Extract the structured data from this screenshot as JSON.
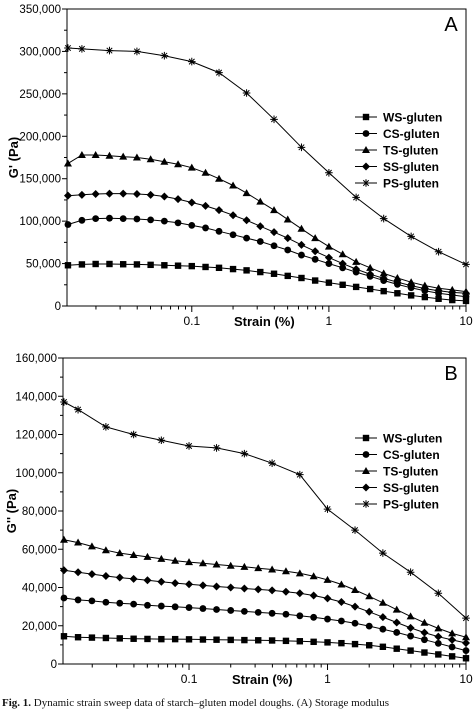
{
  "caption": {
    "prefix": "Fig. 1.",
    "text": "Dynamic strain sweep data of starch–gluten model doughs. (A) Storage modulus"
  },
  "chart_data": [
    {
      "type": "line",
      "panel_label": "A",
      "title": "",
      "xlabel": "Strain (%)",
      "ylabel": "G' (Pa)",
      "xscale": "log",
      "xlim": [
        0.0123,
        10
      ],
      "ylim": [
        0,
        350000
      ],
      "x_ticks": [
        0.1,
        1,
        10
      ],
      "x_tick_labels": [
        "0.1",
        "1",
        "10"
      ],
      "y_ticks": [
        0,
        50000,
        100000,
        150000,
        200000,
        250000,
        300000,
        350000
      ],
      "y_tick_labels": [
        "0",
        "50,000",
        "100,000",
        "150,000",
        "200,000",
        "250,000",
        "300,000",
        "350,000"
      ],
      "grid": false,
      "legend_position": "right",
      "series": [
        {
          "name": "WS-gluten",
          "marker": "square",
          "x": [
            0.0125,
            0.0158,
            0.0199,
            0.0251,
            0.0316,
            0.0398,
            0.0501,
            0.0631,
            0.0794,
            0.1,
            0.126,
            0.158,
            0.2,
            0.251,
            0.316,
            0.398,
            0.501,
            0.631,
            0.794,
            1,
            1.26,
            1.58,
            2,
            2.51,
            3.16,
            3.98,
            5.01,
            6.31,
            7.94,
            10
          ],
          "y": [
            48000,
            49000,
            49500,
            49500,
            49200,
            49000,
            48500,
            48000,
            47500,
            47000,
            46000,
            45000,
            43500,
            42000,
            40000,
            38000,
            35500,
            33000,
            30000,
            27500,
            25000,
            22500,
            20000,
            17500,
            15000,
            12500,
            10500,
            8500,
            7000,
            6000
          ]
        },
        {
          "name": "CS-gluten",
          "marker": "circle",
          "x": [
            0.0125,
            0.0158,
            0.0199,
            0.0251,
            0.0316,
            0.0398,
            0.0501,
            0.0631,
            0.0794,
            0.1,
            0.126,
            0.158,
            0.2,
            0.251,
            0.316,
            0.398,
            0.501,
            0.631,
            0.794,
            1,
            1.26,
            1.58,
            2,
            2.51,
            3.16,
            3.98,
            5.01,
            6.31,
            7.94,
            10
          ],
          "y": [
            96000,
            101000,
            103000,
            103500,
            103000,
            102500,
            101500,
            100000,
            98000,
            95000,
            92000,
            88000,
            84000,
            80000,
            76000,
            71000,
            66000,
            60000,
            55000,
            50000,
            45000,
            40000,
            35000,
            30000,
            25500,
            21500,
            18000,
            15000,
            13000,
            11000
          ]
        },
        {
          "name": "TS-gluten",
          "marker": "triangle",
          "x": [
            0.0125,
            0.0158,
            0.0199,
            0.0251,
            0.0316,
            0.0398,
            0.0501,
            0.0631,
            0.0794,
            0.1,
            0.126,
            0.158,
            0.2,
            0.251,
            0.316,
            0.398,
            0.501,
            0.631,
            0.794,
            1,
            1.26,
            1.58,
            2,
            2.51,
            3.16,
            3.98,
            5.01,
            6.31,
            7.94,
            10
          ],
          "y": [
            168000,
            178000,
            178000,
            177000,
            176000,
            175000,
            173000,
            170000,
            167000,
            163000,
            157000,
            150000,
            142000,
            133000,
            123000,
            113000,
            102000,
            91000,
            80000,
            70000,
            61000,
            52000,
            45000,
            38500,
            33000,
            28000,
            24000,
            21000,
            19000,
            17000
          ]
        },
        {
          "name": "SS-gluten",
          "marker": "diamond",
          "x": [
            0.0125,
            0.0158,
            0.0199,
            0.0251,
            0.0316,
            0.0398,
            0.0501,
            0.0631,
            0.0794,
            0.1,
            0.126,
            0.158,
            0.2,
            0.251,
            0.316,
            0.398,
            0.501,
            0.631,
            0.794,
            1,
            1.26,
            1.58,
            2,
            2.51,
            3.16,
            3.98,
            5.01,
            6.31,
            7.94,
            10
          ],
          "y": [
            130000,
            131000,
            132000,
            132500,
            132500,
            132000,
            131000,
            129000,
            126000,
            122000,
            118000,
            113000,
            107000,
            101000,
            94000,
            87000,
            80000,
            72000,
            64500,
            57000,
            50000,
            43500,
            37500,
            32500,
            28000,
            24000,
            20500,
            18000,
            16000,
            15000
          ]
        },
        {
          "name": "PS-gluten",
          "marker": "star",
          "x": [
            0.0125,
            0.0158,
            0.0251,
            0.0398,
            0.0631,
            0.1,
            0.158,
            0.251,
            0.398,
            0.631,
            1,
            1.58,
            2.51,
            3.98,
            6.31,
            10
          ],
          "y": [
            304000,
            303000,
            301000,
            300000,
            295000,
            288000,
            275000,
            251000,
            220000,
            187000,
            157000,
            128000,
            103000,
            82000,
            64000,
            49000
          ]
        }
      ]
    },
    {
      "type": "line",
      "panel_label": "B",
      "title": "",
      "xlabel": "Strain (%)",
      "ylabel": "G'' (Pa)",
      "xscale": "log",
      "xlim": [
        0.0123,
        10
      ],
      "ylim": [
        0,
        160000
      ],
      "x_ticks": [
        0.1,
        1,
        10
      ],
      "x_tick_labels": [
        "0.1",
        "1",
        "10"
      ],
      "y_ticks": [
        0,
        20000,
        40000,
        60000,
        80000,
        100000,
        120000,
        140000,
        160000
      ],
      "y_tick_labels": [
        "0",
        "20,000",
        "40,000",
        "60,000",
        "80,000",
        "100,000",
        "120,000",
        "140,000",
        "160,000"
      ],
      "grid": false,
      "legend_position": "right",
      "series": [
        {
          "name": "WS-gluten",
          "marker": "square",
          "x": [
            0.0125,
            0.0158,
            0.0199,
            0.0251,
            0.0316,
            0.0398,
            0.0501,
            0.0631,
            0.0794,
            0.1,
            0.126,
            0.158,
            0.2,
            0.251,
            0.316,
            0.398,
            0.501,
            0.631,
            0.794,
            1,
            1.26,
            1.58,
            2,
            2.51,
            3.16,
            3.98,
            5.01,
            6.31,
            7.94,
            10
          ],
          "y": [
            14500,
            14000,
            13800,
            13600,
            13400,
            13200,
            13100,
            13000,
            13000,
            12900,
            12800,
            12700,
            12600,
            12500,
            12400,
            12300,
            12100,
            11900,
            11600,
            11300,
            10900,
            10400,
            9800,
            9000,
            8000,
            7000,
            6000,
            5000,
            4000,
            3000
          ]
        },
        {
          "name": "CS-gluten",
          "marker": "circle",
          "x": [
            0.0125,
            0.0158,
            0.0199,
            0.0251,
            0.0316,
            0.0398,
            0.0501,
            0.0631,
            0.0794,
            0.1,
            0.126,
            0.158,
            0.2,
            0.251,
            0.316,
            0.398,
            0.501,
            0.631,
            0.794,
            1,
            1.26,
            1.58,
            2,
            2.51,
            3.16,
            3.98,
            5.01,
            6.31,
            7.94,
            10
          ],
          "y": [
            34500,
            33500,
            33000,
            32300,
            31800,
            31300,
            30700,
            30300,
            29900,
            29500,
            29000,
            28500,
            28000,
            27500,
            27000,
            26500,
            26000,
            25200,
            24400,
            23500,
            22500,
            21300,
            19800,
            18200,
            16500,
            14600,
            12700,
            10800,
            8900,
            7000
          ]
        },
        {
          "name": "TS-gluten",
          "marker": "triangle",
          "x": [
            0.0125,
            0.0158,
            0.0199,
            0.0251,
            0.0316,
            0.0398,
            0.0501,
            0.0631,
            0.0794,
            0.1,
            0.126,
            0.158,
            0.2,
            0.251,
            0.316,
            0.398,
            0.501,
            0.631,
            0.794,
            1,
            1.26,
            1.58,
            2,
            2.51,
            3.16,
            3.98,
            5.01,
            6.31,
            7.94,
            10
          ],
          "y": [
            65000,
            63500,
            61500,
            59500,
            58000,
            57000,
            56000,
            55000,
            54000,
            53300,
            52700,
            52000,
            51400,
            50800,
            50100,
            49400,
            48500,
            47400,
            45900,
            44000,
            41600,
            38700,
            35400,
            32000,
            28400,
            24900,
            21600,
            18600,
            16000,
            14000
          ]
        },
        {
          "name": "SS-gluten",
          "marker": "diamond",
          "x": [
            0.0125,
            0.0158,
            0.0199,
            0.0251,
            0.0316,
            0.0398,
            0.0501,
            0.0631,
            0.0794,
            0.1,
            0.126,
            0.158,
            0.2,
            0.251,
            0.316,
            0.398,
            0.501,
            0.631,
            0.794,
            1,
            1.26,
            1.58,
            2,
            2.51,
            3.16,
            3.98,
            5.01,
            6.31,
            7.94,
            10
          ],
          "y": [
            49000,
            48000,
            47000,
            46000,
            45200,
            44500,
            43800,
            43000,
            42300,
            41700,
            41100,
            40500,
            40000,
            39500,
            39000,
            38500,
            37800,
            37000,
            35800,
            34300,
            32400,
            30000,
            27300,
            24500,
            21700,
            18900,
            16400,
            14300,
            12600,
            11000
          ]
        },
        {
          "name": "PS-gluten",
          "marker": "star",
          "x": [
            0.0125,
            0.0158,
            0.0251,
            0.0398,
            0.0631,
            0.1,
            0.158,
            0.251,
            0.398,
            0.631,
            1,
            1.58,
            2.51,
            3.98,
            6.31,
            10
          ],
          "y": [
            137000,
            133000,
            124000,
            120000,
            117000,
            114000,
            113000,
            110000,
            105000,
            99000,
            81000,
            70000,
            58000,
            48000,
            37000,
            24000
          ]
        }
      ]
    }
  ]
}
